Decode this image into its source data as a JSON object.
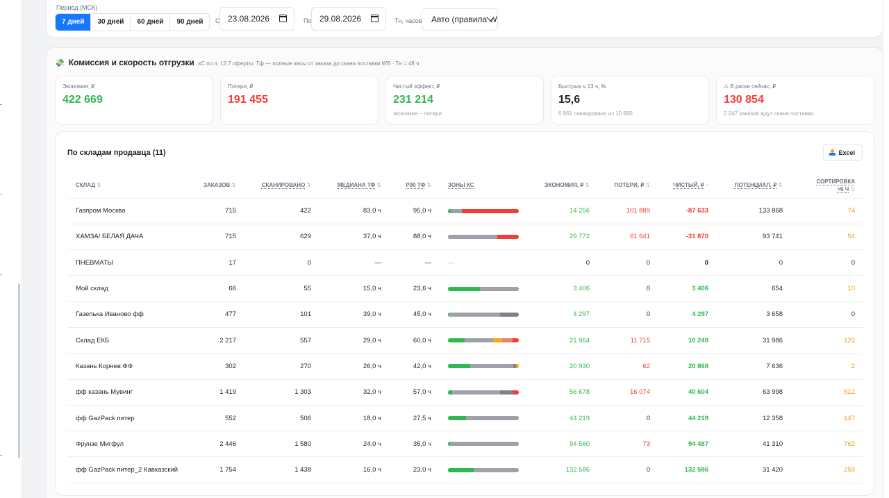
{
  "filter": {
    "period_label": "Период (МСК)",
    "period_buttons": [
      "7 дней",
      "30 дней",
      "60 дней",
      "90 дней"
    ],
    "active_period_index": 0,
    "from_label": "С",
    "from_date": "23.08.2026",
    "to_label": "По",
    "to_date": "29.08.2026",
    "tn_label": "Тн, часов",
    "tn_value": "Авто (правила W"
  },
  "section": {
    "icon": "money-icon",
    "title": "Комиссия и скорость отгрузки",
    "subtitle": "кС по п. 12.7 оферты: Тф — полные часы от заказа до скана поставки WB · Тн = 48 ч"
  },
  "kpis": [
    {
      "label": "Экономия, ₽",
      "value": "422 669",
      "sub": "",
      "color": "#2fb84f"
    },
    {
      "label": "Потери, ₽",
      "value": "191 455",
      "sub": "",
      "color": "#f23c36"
    },
    {
      "label": "Чистый эффект, ₽",
      "value": "231 214",
      "sub": "экономия − потери",
      "color": "#2fb84f"
    },
    {
      "label": "Быстрых ≤ 13 ч, %",
      "value": "15,6",
      "sub": "6 861 сканировано из 10 680",
      "color": "#1f2329"
    },
    {
      "label": "⚠ В риске сейчас, ₽",
      "value": "130 854",
      "sub": "2 247 заказов ждут скана поставки",
      "color": "#f23c36"
    }
  ],
  "table": {
    "title": "По складам продавца (11)",
    "excel_label": "Excel",
    "headers": {
      "warehouse": "Склад",
      "orders": "Заказов",
      "scanned": "Сканировано",
      "median": "Медиана ТФ",
      "p90": "P90 ТФ",
      "zones": "Зоны кС",
      "savings": "Экономия, ₽",
      "losses": "Потери, ₽",
      "net": "Чистый, ₽",
      "potential": "Потенциал, ₽",
      "sort_line1": "Сортировка",
      "sort_line2": ">6 ч"
    },
    "sort_icon": "⇅",
    "sort_active_icon": "↑",
    "zone_colors": {
      "green": "#2fb84f",
      "gray": "#9ea2a8",
      "darkgray": "#7e8288",
      "orange": "#f5a623",
      "salmon": "#f0806a",
      "red": "#f23c36"
    },
    "rows": [
      {
        "name": "Газпром Москва",
        "orders": "715",
        "scanned": "422",
        "median": "83,0 ч",
        "p90": "95,0 ч",
        "zones": [
          [
            "green",
            4
          ],
          [
            "gray",
            16
          ],
          [
            "red",
            80
          ]
        ],
        "savings": "14 256",
        "losses": "101 889",
        "net": "-87 633",
        "net_color": "#f23c36",
        "potential": "133 868",
        "sort": "74",
        "sort_color": "#f29b1a"
      },
      {
        "name": "ХАМЗА/ БЕЛАЯ ДАЧА",
        "orders": "715",
        "scanned": "629",
        "median": "37,0 ч",
        "p90": "88,0 ч",
        "zones": [
          [
            "gray",
            70
          ],
          [
            "red",
            30
          ]
        ],
        "savings": "29 772",
        "losses": "61 641",
        "net": "-31 870",
        "net_color": "#f23c36",
        "potential": "93 741",
        "sort": "54",
        "sort_color": "#f29b1a"
      },
      {
        "name": "ПНЕВМАТЫ",
        "orders": "17",
        "scanned": "0",
        "median": "—",
        "p90": "—",
        "zones": [],
        "zones_text": "—",
        "savings": "0",
        "losses": "0",
        "net": "0",
        "net_color": "#1f2329",
        "potential": "0",
        "sort": "0",
        "sort_color": "#1f2329"
      },
      {
        "name": "Мой склад",
        "orders": "66",
        "scanned": "55",
        "median": "15,0 ч",
        "p90": "23,6 ч",
        "zones": [
          [
            "green",
            45
          ],
          [
            "gray",
            55
          ]
        ],
        "savings": "3 406",
        "losses": "0",
        "net": "3 406",
        "net_color": "#2fb84f",
        "potential": "654",
        "sort": "10",
        "sort_color": "#f29b1a"
      },
      {
        "name": "Газелька Иваново фф",
        "orders": "477",
        "scanned": "101",
        "median": "39,0 ч",
        "p90": "45,0 ч",
        "zones": [
          [
            "green",
            2
          ],
          [
            "gray",
            72
          ],
          [
            "darkgray",
            26
          ]
        ],
        "savings": "4 297",
        "losses": "0",
        "net": "4 297",
        "net_color": "#2fb84f",
        "potential": "3 658",
        "sort": "0",
        "sort_color": "#1f2329"
      },
      {
        "name": "Склад ЕКБ",
        "orders": "2 217",
        "scanned": "557",
        "median": "29,0 ч",
        "p90": "60,0 ч",
        "zones": [
          [
            "green",
            24
          ],
          [
            "gray",
            40
          ],
          [
            "darkgray",
            0
          ],
          [
            "orange",
            12
          ],
          [
            "salmon",
            15
          ],
          [
            "red",
            9
          ]
        ],
        "savings": "21 964",
        "losses": "11 715",
        "net": "10 249",
        "net_color": "#2fb84f",
        "potential": "31 986",
        "sort": "122",
        "sort_color": "#f29b1a"
      },
      {
        "name": "Казань Корнев ФФ",
        "orders": "302",
        "scanned": "270",
        "median": "26,0 ч",
        "p90": "42,0 ч",
        "zones": [
          [
            "green",
            31
          ],
          [
            "gray",
            61
          ],
          [
            "darkgray",
            4
          ],
          [
            "orange",
            4
          ]
        ],
        "savings": "20 930",
        "losses": "62",
        "net": "20 868",
        "net_color": "#2fb84f",
        "potential": "7 636",
        "sort": "2",
        "sort_color": "#f29b1a"
      },
      {
        "name": "фф казань Мувинг",
        "orders": "1 419",
        "scanned": "1 303",
        "median": "32,0 ч",
        "p90": "57,0 ч",
        "zones": [
          [
            "green",
            6
          ],
          [
            "gray",
            68
          ],
          [
            "darkgray",
            18
          ],
          [
            "red",
            8
          ]
        ],
        "savings": "56 678",
        "losses": "16 074",
        "net": "40 604",
        "net_color": "#2fb84f",
        "potential": "63 998",
        "sort": "512",
        "sort_color": "#f29b1a"
      },
      {
        "name": "фф GazPack питер",
        "orders": "552",
        "scanned": "506",
        "median": "18,0 ч",
        "p90": "27,5 ч",
        "zones": [
          [
            "green",
            25
          ],
          [
            "gray",
            75
          ]
        ],
        "savings": "44 219",
        "losses": "0",
        "net": "44 219",
        "net_color": "#2fb84f",
        "potential": "12 358",
        "sort": "147",
        "sort_color": "#f29b1a"
      },
      {
        "name": "Фрунзе Мигфул",
        "orders": "2 446",
        "scanned": "1 580",
        "median": "24,0 ч",
        "p90": "35,0 ч",
        "zones": [
          [
            "green",
            3
          ],
          [
            "gray",
            97
          ]
        ],
        "savings": "94 560",
        "losses": "73",
        "net": "94 487",
        "net_color": "#2fb84f",
        "potential": "41 310",
        "sort": "762",
        "sort_color": "#f29b1a"
      },
      {
        "name": "фф GazPack питер_2 Кавказский",
        "orders": "1 754",
        "scanned": "1 438",
        "median": "16,0 ч",
        "p90": "23,0 ч",
        "zones": [
          [
            "green",
            36
          ],
          [
            "gray",
            64
          ]
        ],
        "savings": "132 586",
        "losses": "0",
        "net": "132 586",
        "net_color": "#2fb84f",
        "potential": "31 420",
        "sort": "259",
        "sort_color": "#f29b1a"
      }
    ]
  }
}
